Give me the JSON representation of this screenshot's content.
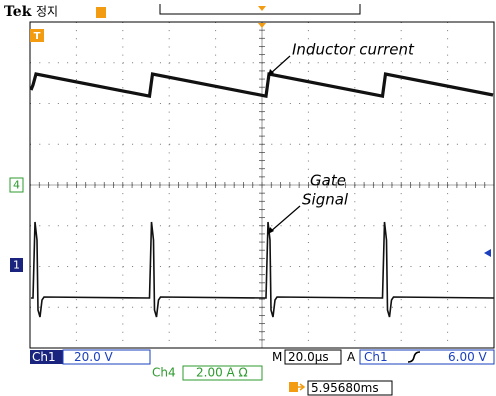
{
  "header": {
    "brand": "Tek",
    "state": "정지"
  },
  "markers": {
    "trigger": "T",
    "ch4": "4",
    "ch1": "1"
  },
  "annotations": {
    "inductor": "Inductor current",
    "gate_line1": "Gate",
    "gate_line2": "Signal"
  },
  "status": {
    "ch1_label": "Ch1",
    "ch1_scale": "20.0 V",
    "time_prefix": "M",
    "time_scale": "20.0µs",
    "trigger_prefix": "A",
    "trigger_source": "Ch1",
    "trigger_level": "6.00 V",
    "ch4_label": "Ch4",
    "ch4_scale": "2.00 A Ω",
    "trigger_position": "5.95680ms"
  }
}
